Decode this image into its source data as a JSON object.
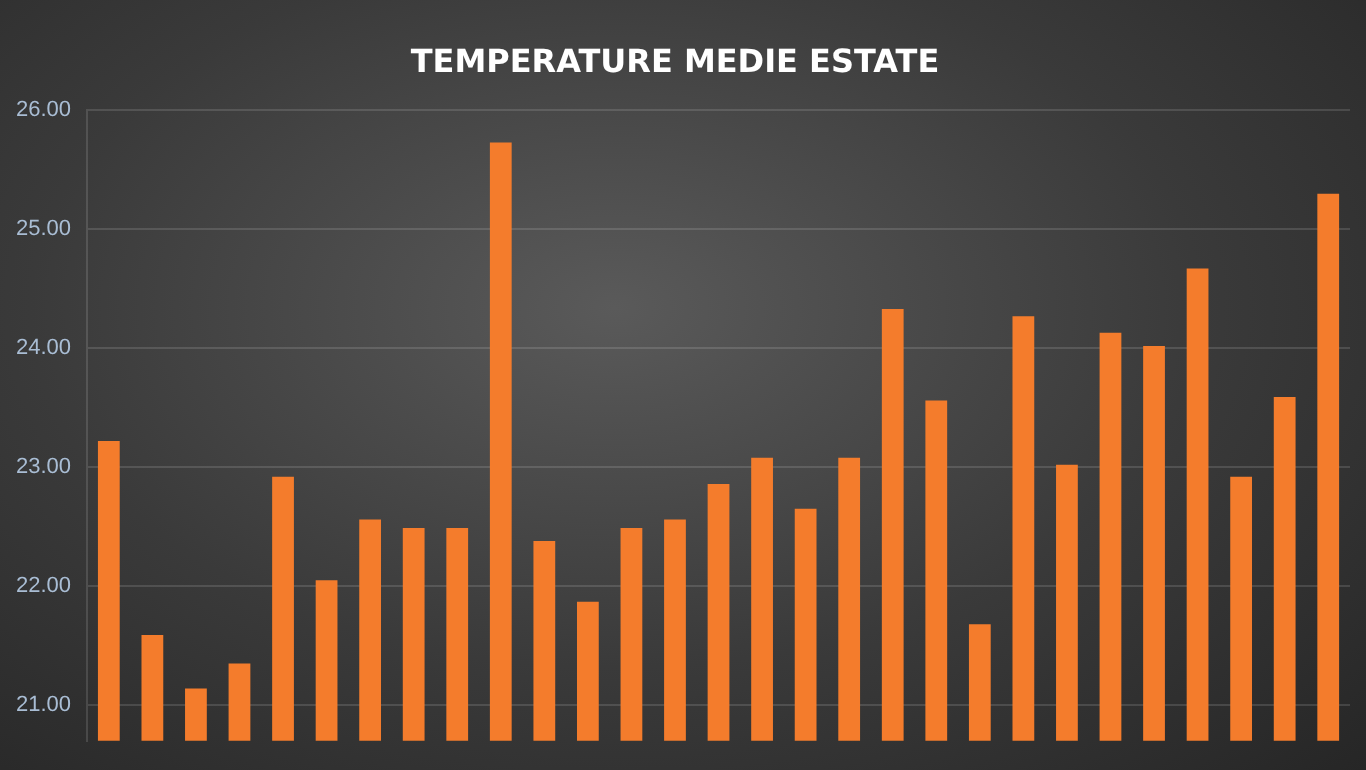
{
  "chart_data": {
    "type": "bar",
    "title": "TEMPERATURE MEDIE ESTATE",
    "categories": [
      null,
      null,
      null,
      null,
      null,
      null,
      null,
      null,
      null,
      null,
      null,
      null,
      null,
      null,
      null,
      null,
      null,
      null,
      null,
      null,
      null,
      null,
      null,
      null,
      null,
      null,
      null,
      null,
      null
    ],
    "values": [
      23.22,
      21.59,
      21.14,
      21.35,
      22.92,
      22.05,
      22.56,
      22.49,
      22.49,
      25.73,
      22.38,
      21.87,
      22.49,
      22.56,
      22.86,
      23.08,
      22.65,
      23.08,
      24.33,
      23.56,
      21.68,
      24.27,
      23.02,
      24.13,
      24.02,
      24.67,
      22.92,
      23.59,
      25.3
    ],
    "color": "#f47c2c",
    "ylim": [
      20.7,
      26
    ],
    "yticks": [
      {
        "value": 21,
        "label": "21.00"
      },
      {
        "value": 22,
        "label": "22.00"
      },
      {
        "value": 23,
        "label": "23.00"
      },
      {
        "value": 24,
        "label": "24.00"
      },
      {
        "value": 25,
        "label": "25.00"
      },
      {
        "value": 26,
        "label": "26.00"
      }
    ],
    "grid": "y",
    "legend": false,
    "tick_labels": "y"
  }
}
